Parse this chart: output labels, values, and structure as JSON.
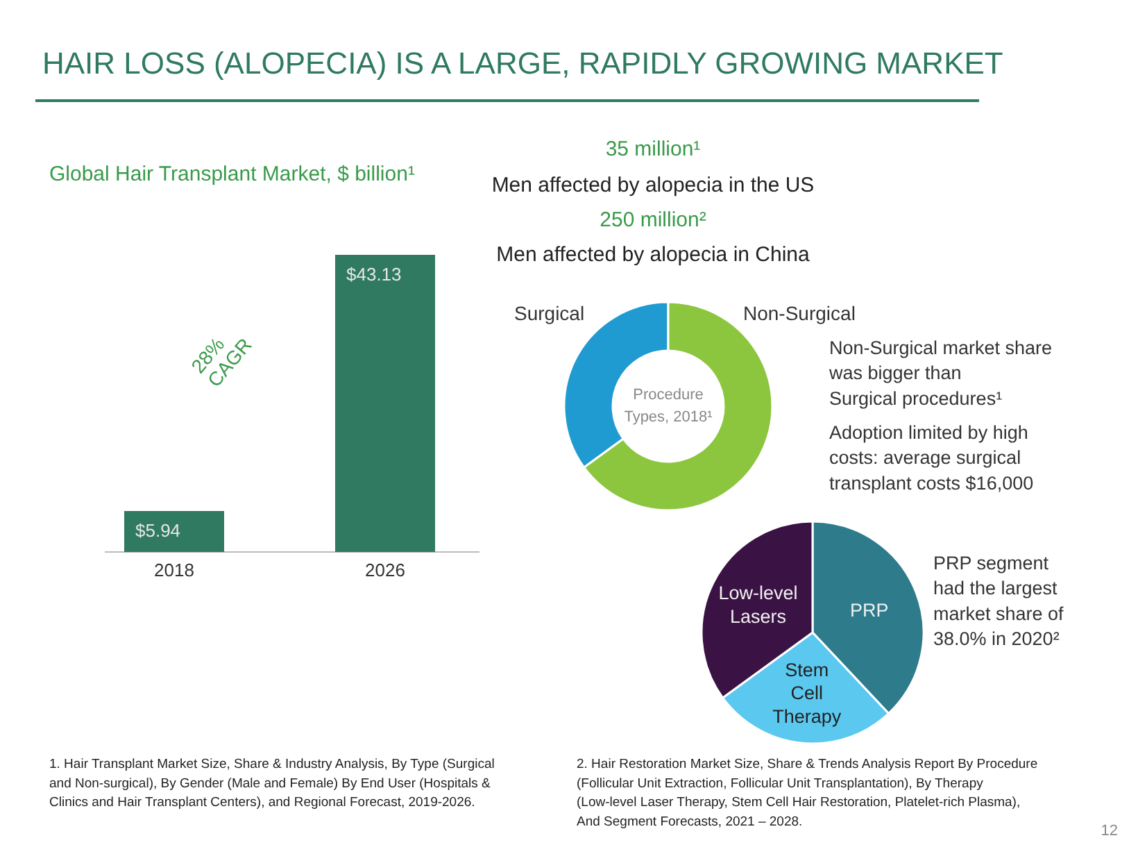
{
  "chart_data": [
    {
      "type": "other",
      "title": "HAIR LOSS (ALOPECIA) IS A LARGE, RAPIDLY GROWING MARKET",
      "annotations": [
        "35 million¹",
        "Men affected by alopecia in the US",
        "250 million²",
        "Men affected by alopecia in China",
        "1. Hair Transplant Market Size, Share & Industry Analysis, By Type (Surgical and Non-surgical), By Gender (Male and Female) By End User (Hospitals & Clinics and Hair Transplant Centers), and Regional Forecast, 2019-2026.",
        "2. Hair Restoration Market Size, Share & Trends Analysis Report By Procedure (Follicular Unit Extraction, Follicular Unit Transplantation), By Therapy (Low-level Laser Therapy, Stem Cell Hair Restoration, Platelet-rich Plasma), And Segment Forecasts, 2021 – 2028.",
        "12"
      ]
    },
    {
      "type": "bar",
      "title": "Global Hair Transplant Market, $ billion¹",
      "categories": [
        "2018",
        "2026"
      ],
      "values": [
        5.94,
        43.13
      ],
      "value_labels": [
        "$5.94",
        "$43.13"
      ],
      "color": "#2f7a60",
      "annotations": [
        "28%\nCAGR"
      ]
    },
    {
      "type": "donut",
      "categories": [
        "Surgical",
        "Non-Surgical"
      ],
      "values": [
        35,
        65
      ],
      "colors": [
        "#1f9bd1",
        "#8cc63f"
      ],
      "annotations": [
        "Procedure\nTypes, 2018¹",
        "Non-Surgical market share\nwas bigger than\nSurgical procedures¹",
        "Adoption limited by high\ncosts: average surgical\ntransplant costs $16,000"
      ]
    },
    {
      "type": "pie",
      "categories": [
        "PRP",
        "Stem Cell Therapy",
        "Low-level Lasers"
      ],
      "values": [
        38.0,
        27,
        35
      ],
      "colors": [
        "#2e7b8c",
        "#5bc8f0",
        "#3b1244"
      ],
      "annotations": [
        "PRP segment\nhad the largest\nmarket share of\n38.0% in 2020²"
      ]
    }
  ]
}
